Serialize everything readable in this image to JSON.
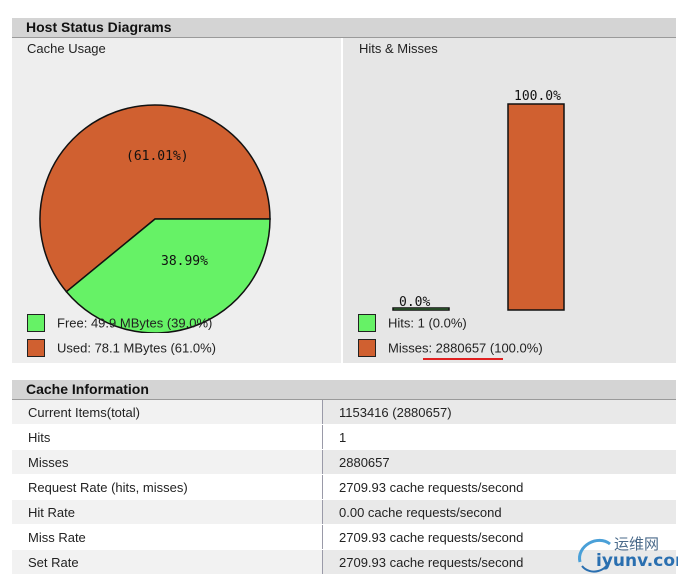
{
  "host_status": {
    "title": "Host Status Diagrams",
    "cache_usage": {
      "title": "Cache Usage",
      "pie_used_label": "(61.01%)",
      "pie_free_label": "38.99%",
      "legend_free": "Free: 49.9 MBytes (39.0%)",
      "legend_used": "Used: 78.1 MBytes (61.0%)"
    },
    "hits_misses": {
      "title": "Hits & Misses",
      "hits_bar_label": "0.0%",
      "misses_bar_label": "100.0%",
      "legend_hits": "Hits: 1 (0.0%)",
      "legend_misses": "Misses: 2880657 (100.0%)"
    }
  },
  "chart_data": [
    {
      "type": "pie",
      "title": "Cache Usage",
      "slices": [
        {
          "name": "Used",
          "value": 61.01,
          "label": "(61.01%)"
        },
        {
          "name": "Free",
          "value": 38.99,
          "label": "38.99%"
        }
      ]
    },
    {
      "type": "bar",
      "title": "Hits & Misses",
      "categories": [
        "Hits",
        "Misses"
      ],
      "values": [
        0.0,
        100.0
      ],
      "ylim": [
        0,
        100
      ]
    }
  ],
  "colors": {
    "free": "#66f266",
    "used": "#d06030",
    "header": "#d4d4d4"
  },
  "cache_info": {
    "title": "Cache Information",
    "rows": [
      {
        "key": "Current Items(total)",
        "value": "1153416 (2880657)"
      },
      {
        "key": "Hits",
        "value": "1"
      },
      {
        "key": "Misses",
        "value": "2880657"
      },
      {
        "key": "Request Rate (hits, misses)",
        "value": "2709.93 cache requests/second"
      },
      {
        "key": "Hit Rate",
        "value": "0.00 cache requests/second"
      },
      {
        "key": "Miss Rate",
        "value": "2709.93 cache requests/second"
      },
      {
        "key": "Set Rate",
        "value": "2709.93 cache requests/second"
      }
    ]
  },
  "watermark": {
    "line1": "运维网",
    "line2": "iyunv.com"
  }
}
